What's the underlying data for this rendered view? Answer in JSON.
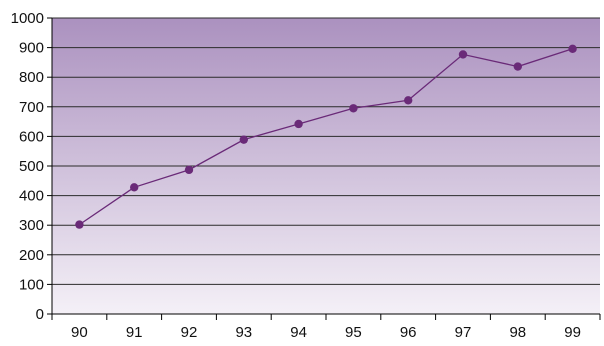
{
  "chart_data": {
    "type": "line",
    "title": "",
    "xlabel": "",
    "ylabel": "",
    "categories": [
      "90",
      "91",
      "92",
      "93",
      "94",
      "95",
      "96",
      "97",
      "98",
      "99"
    ],
    "values": [
      302,
      428,
      487,
      589,
      642,
      695,
      722,
      877,
      836,
      896
    ],
    "ylim": [
      0,
      1000
    ],
    "yticks": [
      0,
      100,
      200,
      300,
      400,
      500,
      600,
      700,
      800,
      900,
      1000
    ],
    "grid": true,
    "legend": "none",
    "colors": {
      "line": "#6a2a78",
      "marker": "#6a2a78",
      "grid": "#2b2b2b",
      "background_top": "#ab91bf",
      "background_bottom": "#f4f0f7"
    }
  }
}
